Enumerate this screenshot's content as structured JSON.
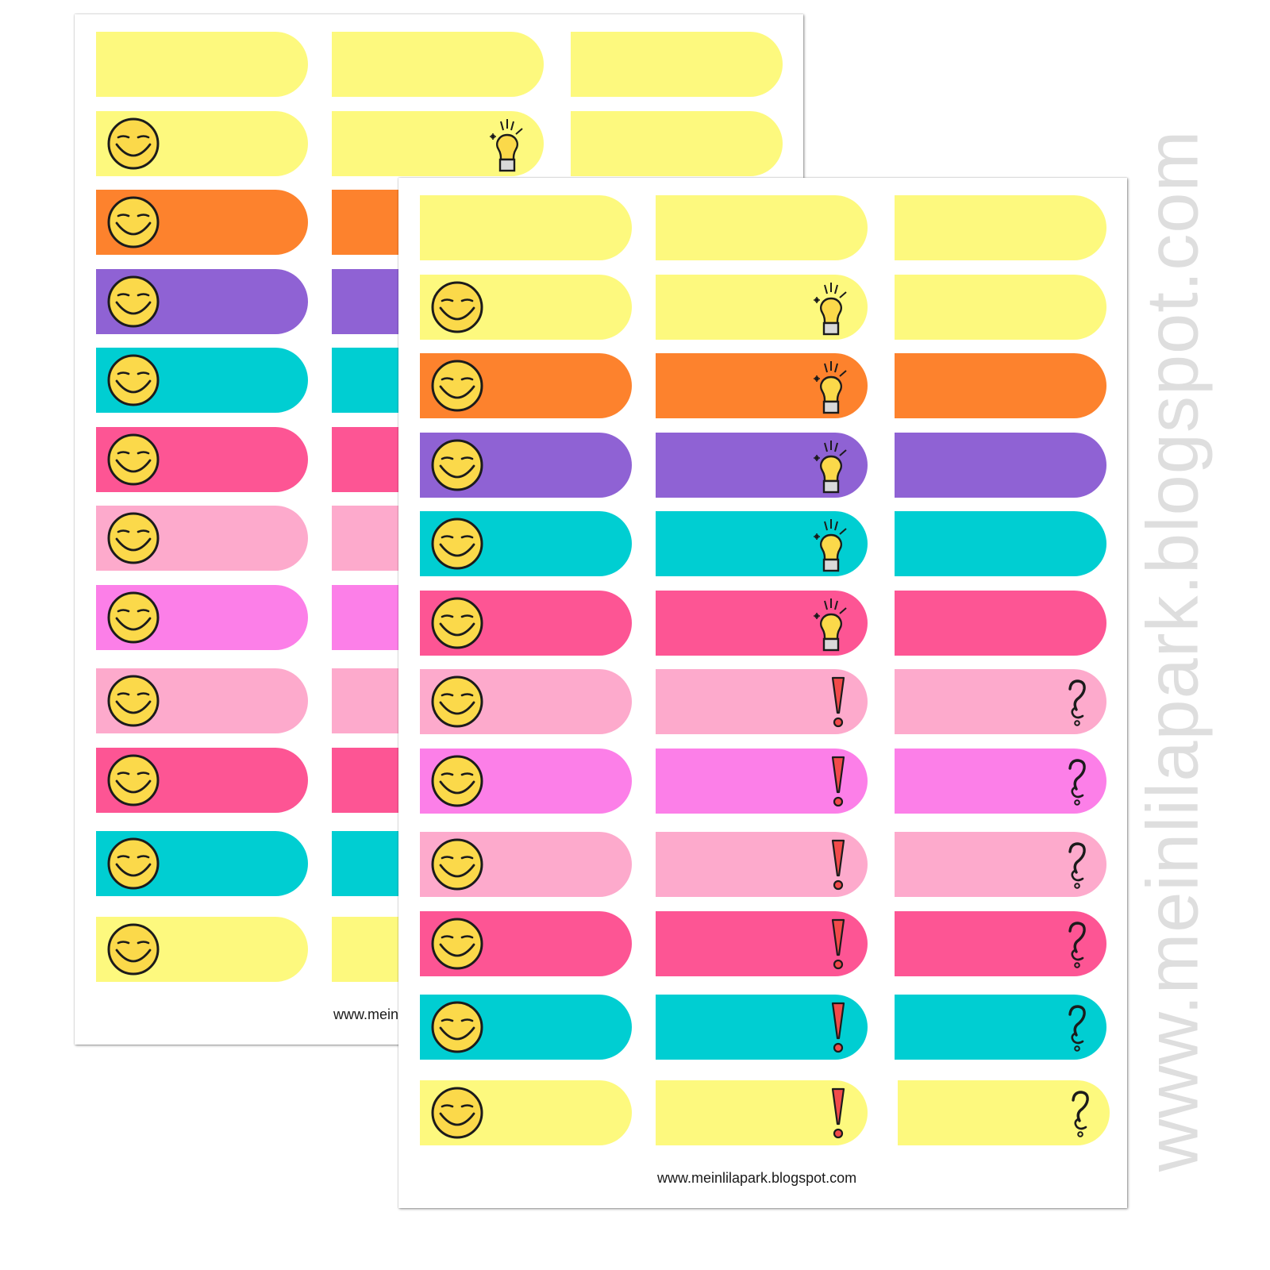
{
  "colors": {
    "yellow": "#fdf97e",
    "orange": "#fd822d",
    "purple": "#8f62d4",
    "teal": "#00ced2",
    "pink": "#fd5594",
    "light_pink": "#fdaacc",
    "magenta": "#fc7fe8",
    "smiley_face": "#fbd94a",
    "bulb": "#fbd94a",
    "exclamation": "#f24a4a"
  },
  "back_sheet": {
    "footer_url": "www.meinlilapark.blogspot.com",
    "columns": [
      {
        "rows": [
          {
            "color": "yellow",
            "icon": ""
          },
          {
            "color": "yellow",
            "icon": "smiley"
          },
          {
            "color": "orange",
            "icon": "smiley"
          },
          {
            "color": "purple",
            "icon": "smiley"
          },
          {
            "color": "teal",
            "icon": "smiley"
          },
          {
            "color": "pink",
            "icon": "smiley"
          },
          {
            "color": "light_pink",
            "icon": "smiley"
          },
          {
            "color": "magenta",
            "icon": "smiley"
          },
          {
            "color": "light_pink",
            "icon": "smiley"
          },
          {
            "color": "pink",
            "icon": "smiley"
          },
          {
            "color": "teal",
            "icon": "smiley"
          },
          {
            "color": "yellow",
            "icon": "smiley"
          }
        ]
      },
      {
        "rows": [
          {
            "color": "yellow",
            "icon": ""
          },
          {
            "color": "yellow",
            "icon": "bulb"
          },
          {
            "color": "orange",
            "icon": ""
          },
          {
            "color": "purple",
            "icon": ""
          },
          {
            "color": "teal",
            "icon": ""
          },
          {
            "color": "pink",
            "icon": ""
          },
          {
            "color": "light_pink",
            "icon": ""
          },
          {
            "color": "magenta",
            "icon": ""
          },
          {
            "color": "light_pink",
            "icon": ""
          },
          {
            "color": "pink",
            "icon": ""
          },
          {
            "color": "teal",
            "icon": ""
          },
          {
            "color": "yellow",
            "icon": ""
          }
        ]
      },
      {
        "rows": [
          {
            "color": "yellow",
            "icon": ""
          },
          {
            "color": "yellow",
            "icon": ""
          }
        ]
      }
    ]
  },
  "front_sheet": {
    "footer_url": "www.meinlilapark.blogspot.com",
    "columns": [
      {
        "rows": [
          {
            "color": "yellow",
            "icon": ""
          },
          {
            "color": "yellow",
            "icon": "smiley"
          },
          {
            "color": "orange",
            "icon": "smiley"
          },
          {
            "color": "purple",
            "icon": "smiley"
          },
          {
            "color": "teal",
            "icon": "smiley"
          },
          {
            "color": "pink",
            "icon": "smiley"
          },
          {
            "color": "light_pink",
            "icon": "smiley"
          },
          {
            "color": "magenta",
            "icon": "smiley"
          },
          {
            "color": "light_pink",
            "icon": "smiley"
          },
          {
            "color": "pink",
            "icon": "smiley"
          },
          {
            "color": "teal",
            "icon": "smiley"
          },
          {
            "color": "yellow",
            "icon": "smiley"
          }
        ]
      },
      {
        "rows": [
          {
            "color": "yellow",
            "icon": ""
          },
          {
            "color": "yellow",
            "icon": "bulb"
          },
          {
            "color": "orange",
            "icon": "bulb"
          },
          {
            "color": "purple",
            "icon": "bulb"
          },
          {
            "color": "teal",
            "icon": "bulb"
          },
          {
            "color": "pink",
            "icon": "bulb"
          },
          {
            "color": "light_pink",
            "icon": "exclamation"
          },
          {
            "color": "magenta",
            "icon": "exclamation"
          },
          {
            "color": "light_pink",
            "icon": "exclamation"
          },
          {
            "color": "pink",
            "icon": "exclamation"
          },
          {
            "color": "teal",
            "icon": "exclamation"
          },
          {
            "color": "yellow",
            "icon": "exclamation"
          }
        ]
      },
      {
        "rows": [
          {
            "color": "yellow",
            "icon": ""
          },
          {
            "color": "yellow",
            "icon": ""
          },
          {
            "color": "orange",
            "icon": ""
          },
          {
            "color": "purple",
            "icon": ""
          },
          {
            "color": "teal",
            "icon": ""
          },
          {
            "color": "pink",
            "icon": ""
          },
          {
            "color": "light_pink",
            "icon": "question"
          },
          {
            "color": "magenta",
            "icon": "question"
          },
          {
            "color": "light_pink",
            "icon": "question"
          },
          {
            "color": "pink",
            "icon": "question"
          },
          {
            "color": "teal",
            "icon": "question"
          },
          {
            "color": "yellow",
            "icon": "question"
          }
        ]
      }
    ]
  },
  "watermark": "www.meinlilapark.blogspot.com"
}
